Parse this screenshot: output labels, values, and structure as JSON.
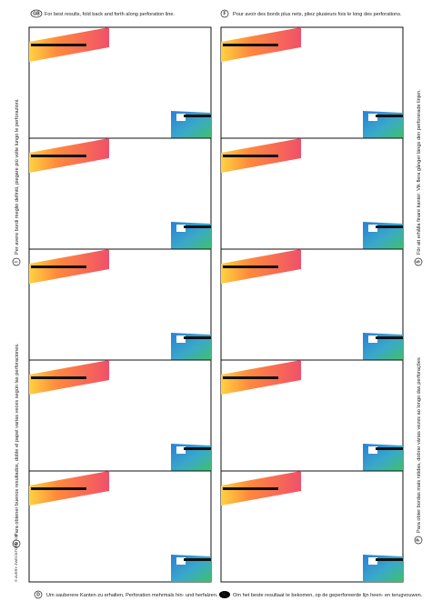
{
  "header": {
    "left": {
      "code": "GB",
      "text": "For best results, fold back and forth along perforation line."
    },
    "right": {
      "code": "F",
      "text": "Pour avoir des bords plus nets, pliez plusieurs fois le long des perforations."
    }
  },
  "sides": {
    "left": [
      {
        "code": "I",
        "text": "Per avere bordi meglio definiti, piegare più volte lungo le perforazioni."
      },
      {
        "code": "E",
        "text": "Para obtener buenos resultados, doble el papel varias veces según las perforaciones."
      }
    ],
    "right": [
      {
        "code": "S",
        "text": "För att erhålla finare kanter: Vik flera gånger längs den perforerade linjen."
      },
      {
        "code": "P",
        "text": "Para obter bordas mais nítidas, dobrar várias vezes ao longo das perforações"
      }
    ]
  },
  "footer": {
    "left": {
      "code": "D",
      "text": "Um sauberere Kanten zu erhalten, Perforation mehrmals hin- und herfalzen."
    },
    "right": {
      "code": "NL",
      "text": "Om het beste resultaat te bekomen, op de geperforeerde lijn heen- en terugvouwen."
    }
  },
  "imprint": "© AVERY ZWECKFORM 526"
}
